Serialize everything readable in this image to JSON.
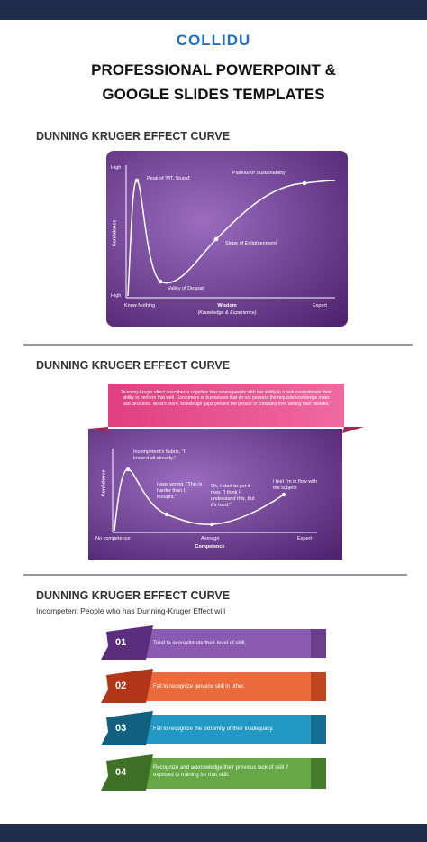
{
  "header": {
    "logo": "COLLIDU",
    "title_lines": [
      "PROFESSIONAL POWERPOINT &",
      "GOOGLE SLIDES TEMPLATES"
    ]
  },
  "section1": {
    "heading": "DUNNING KRUGER EFFECT CURVE",
    "y_axis": "Confidence",
    "y_top": "High",
    "y_bottom": "High",
    "x_axis": "Wisdom",
    "x_axis_sub": "(Knowledge & Experience)",
    "x_left": "Know Nothing",
    "x_right": "Expert",
    "annotations": [
      "Peak of 'MT. Stupid'",
      "Plateau of Sustainability",
      "Slope of Enlightenment",
      "Valley of Despair"
    ]
  },
  "section2": {
    "heading": "DUNNING KRUGER EFFECT CURVE",
    "description": "Dunning-Kruger effect describes a cognitive bias where people with low ability in a task overestimate their ability to perform that well. Consumers or businesses that do not possess the requisite knowledge make bad decisions. What's more, knowledge gaps prevent the person or company from seeing their mistake.",
    "y_axis": "Confidence",
    "x_axis": "Competence",
    "x_left": "No competence",
    "x_mid": "Average",
    "x_right": "Expert",
    "annotations": [
      "Incompetent's hubris, \"I know it all already.\"",
      "I was wrong. \"This is harder than I thought.\"",
      "Ok, I start to get it now. \"I think I understand this, but it's hard.\"",
      "I feel I'm in flow with the subject"
    ]
  },
  "section3": {
    "heading": "DUNNING KRUGER EFFECT CURVE",
    "subtitle": "Incompetent People who has Dunning-Kruger Effect will",
    "items": [
      {
        "number": "01",
        "text": "Tend to overestimate their level of skill."
      },
      {
        "number": "02",
        "text": "Fail to recognize genuine skill in other."
      },
      {
        "number": "03",
        "text": "Fail to recognize the extremity of their inadequacy."
      },
      {
        "number": "04",
        "text": "Recognize and acknowledge their previous lack of skill if exposed to training for that skill."
      }
    ]
  }
}
